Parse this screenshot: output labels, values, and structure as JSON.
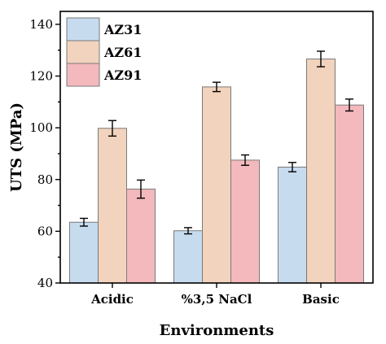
{
  "chart_data": {
    "type": "bar",
    "title": "",
    "xlabel": "Environments",
    "ylabel": "UTS (MPa)",
    "ylim": [
      40,
      145
    ],
    "yticks": [
      40,
      60,
      80,
      100,
      120,
      140
    ],
    "categories": [
      "Acidic",
      "%3,5 NaCl",
      "Basic"
    ],
    "series": [
      {
        "name": "AZ31",
        "color": "#c7dbef",
        "values": [
          63.5,
          60.2,
          84.8
        ],
        "errors": [
          1.5,
          1.2,
          1.8
        ]
      },
      {
        "name": "AZ61",
        "color": "#f2d3bd",
        "values": [
          99.8,
          115.8,
          126.6
        ],
        "errors": [
          3.0,
          1.8,
          3.0
        ]
      },
      {
        "name": "AZ91",
        "color": "#f3b9bd",
        "values": [
          76.3,
          87.5,
          108.8
        ],
        "errors": [
          3.5,
          2.0,
          2.3
        ]
      }
    ],
    "legend_position": "top-left",
    "grid": false
  }
}
